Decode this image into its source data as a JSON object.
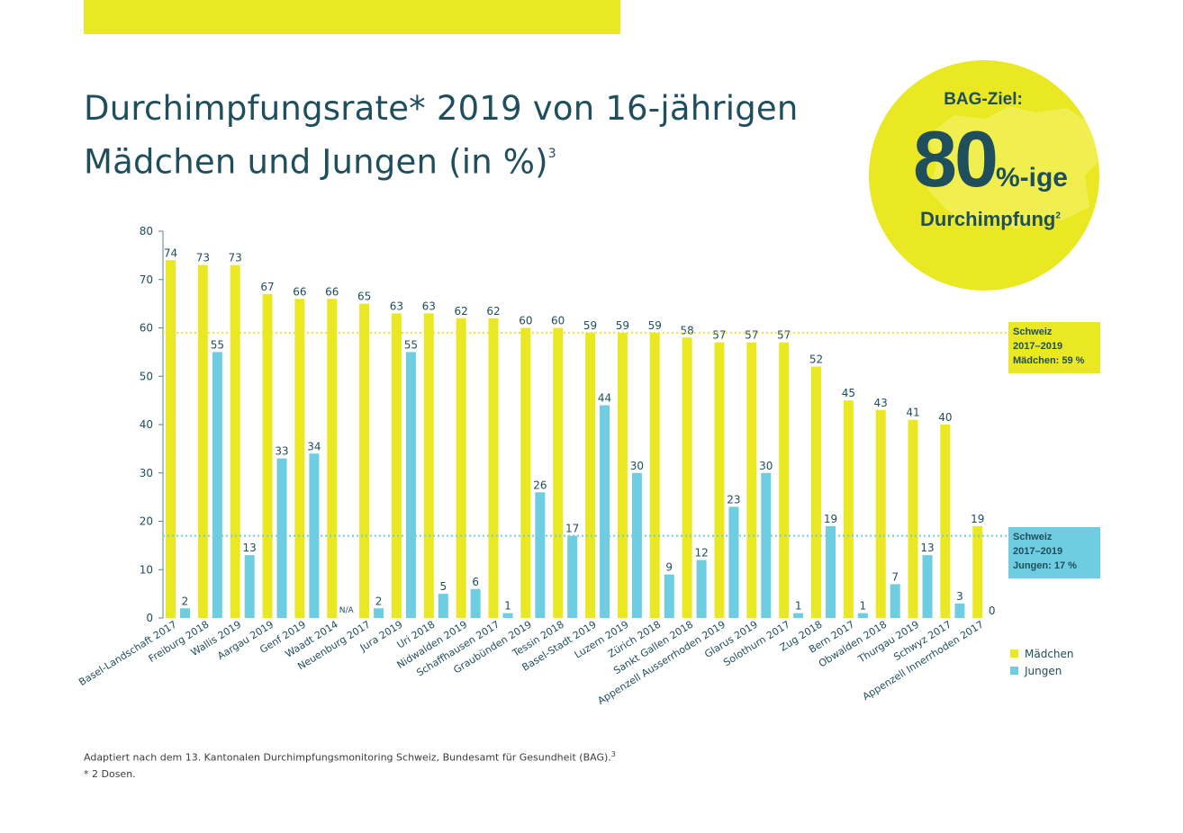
{
  "title_line1": "Durchimpfungsrate* 2019 von 16-jährigen",
  "title_line2": "Mädchen und Jungen (in %)",
  "title_superscript": "3",
  "badge": {
    "label": "BAG-Ziel:",
    "value": "80",
    "value_suffix": "%-ige",
    "subtitle": "Durchimpfung",
    "subtitle_superscript": "2"
  },
  "footnote": {
    "source": "Adaptiert nach dem 13. Kantonalen Durchimpfungsmonitoring Schweiz, Bundesamt für Gesundheit (BAG).",
    "source_superscript": "3",
    "doses": "* 2 Dosen."
  },
  "colors": {
    "maedchen": "#e9e823",
    "jungen": "#6ecde0",
    "text": "#1f4e5c",
    "badge": "#e9e823"
  },
  "chart_data": {
    "type": "bar",
    "title": "Durchimpfungsrate* 2019 von 16-jährigen Mädchen und Jungen (in %)",
    "xlabel": "",
    "ylabel": "",
    "ylim": [
      0,
      80
    ],
    "yticks": [
      0,
      10,
      20,
      30,
      40,
      50,
      60,
      70,
      80
    ],
    "categories": [
      "Basel-Landschaft 2017",
      "Freiburg 2018",
      "Wallis 2019",
      "Aargau 2019",
      "Genf 2019",
      "Waadt 2014",
      "Neuenburg 2017",
      "Jura 2019",
      "Uri 2018",
      "Nidwalden 2019",
      "Schaffhausen 2017",
      "Graubünden 2019",
      "Tessin 2018",
      "Basel-Stadt 2019",
      "Luzern 2019",
      "Zürich 2018",
      "Sankt Gallen 2018",
      "Appenzell Ausserrhoden 2019",
      "Glarus 2019",
      "Solothurn 2017",
      "Zug 2018",
      "Bern 2017",
      "Obwalden 2018",
      "Thurgau 2019",
      "Schwyz 2017",
      "Appenzell Innerrhoden 2017"
    ],
    "series": [
      {
        "name": "Mädchen",
        "values": [
          74,
          73,
          73,
          67,
          66,
          66,
          65,
          63,
          63,
          62,
          62,
          60,
          60,
          59,
          59,
          59,
          58,
          57,
          57,
          57,
          52,
          45,
          43,
          41,
          40,
          19
        ]
      },
      {
        "name": "Jungen",
        "values": [
          2,
          55,
          13,
          33,
          34,
          null,
          2,
          55,
          5,
          6,
          1,
          26,
          17,
          44,
          30,
          9,
          12,
          23,
          30,
          1,
          19,
          1,
          7,
          13,
          3,
          0
        ]
      }
    ],
    "na_label": "N/A",
    "legend": {
      "position": "right",
      "entries": [
        "Mädchen",
        "Jungen"
      ]
    },
    "reference_lines": [
      {
        "series": "Mädchen",
        "value": 59,
        "label_lines": [
          "Schweiz",
          "2017–2019",
          "Mädchen: 59 %"
        ]
      },
      {
        "series": "Jungen",
        "value": 17,
        "label_lines": [
          "Schweiz",
          "2017–2019",
          "Jungen: 17 %"
        ]
      }
    ]
  }
}
